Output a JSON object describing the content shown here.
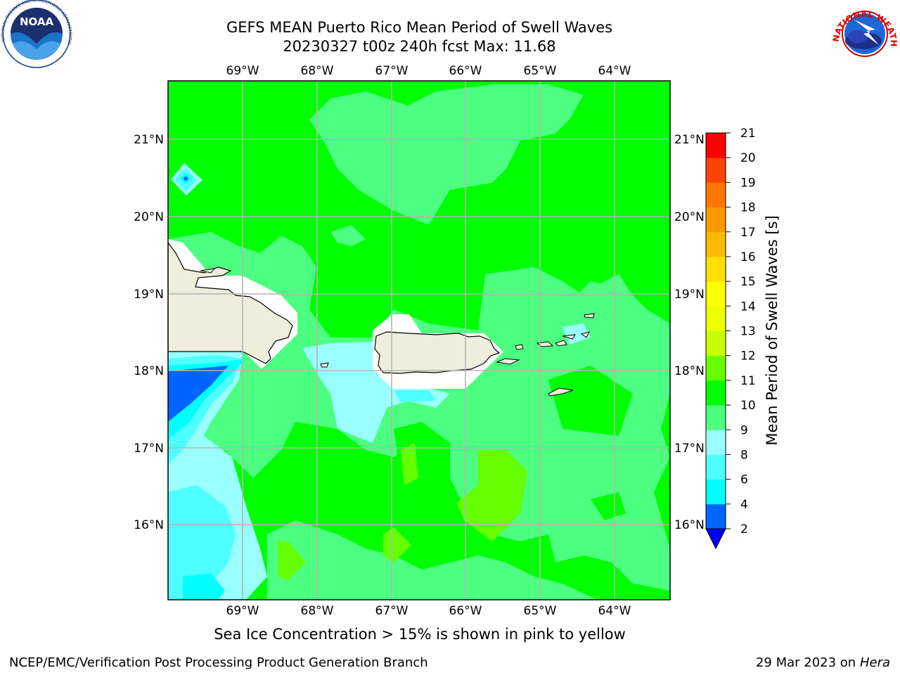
{
  "title": {
    "line1": "GEFS MEAN Puerto Rico Mean Period of Swell Waves",
    "line2": "20230327 t00z 240h fcst   Max: 11.68"
  },
  "axes": {
    "lon_labels": [
      "69°W",
      "68°W",
      "67°W",
      "66°W",
      "65°W",
      "64°W"
    ],
    "lat_labels": [
      "21°N",
      "20°N",
      "19°N",
      "18°N",
      "17°N",
      "16°N"
    ]
  },
  "colorbar": {
    "label": "Mean Period of Swell Waves [s]",
    "ticks": [
      "2",
      "4",
      "6",
      "8",
      "9",
      "10",
      "11",
      "12",
      "13",
      "14",
      "15",
      "16",
      "17",
      "18",
      "19",
      "20",
      "21"
    ],
    "colors": [
      "#0064ff",
      "#00ffff",
      "#4dffff",
      "#99ffff",
      "#4dff80",
      "#00ff00",
      "#66ff00",
      "#c8ff00",
      "#eeff00",
      "#ffff00",
      "#ffe000",
      "#ffbb00",
      "#ff9900",
      "#ff7700",
      "#ff4400",
      "#ff0000"
    ],
    "under_color": "#0000ff"
  },
  "note": "Sea Ice Concentration > 15% is shown in pink to yellow",
  "footer": {
    "left": "NCEP/EMC/Verification Post Processing Product Generation Branch",
    "date": "29 Mar 2023 on",
    "machine": "Hera"
  },
  "logos": {
    "noaa": {
      "text": "NOAA",
      "icon": "noaa-logo-icon"
    },
    "nws": {
      "text": "NATIONAL WEATHER SERVICE",
      "icon": "nws-logo-icon"
    }
  }
}
